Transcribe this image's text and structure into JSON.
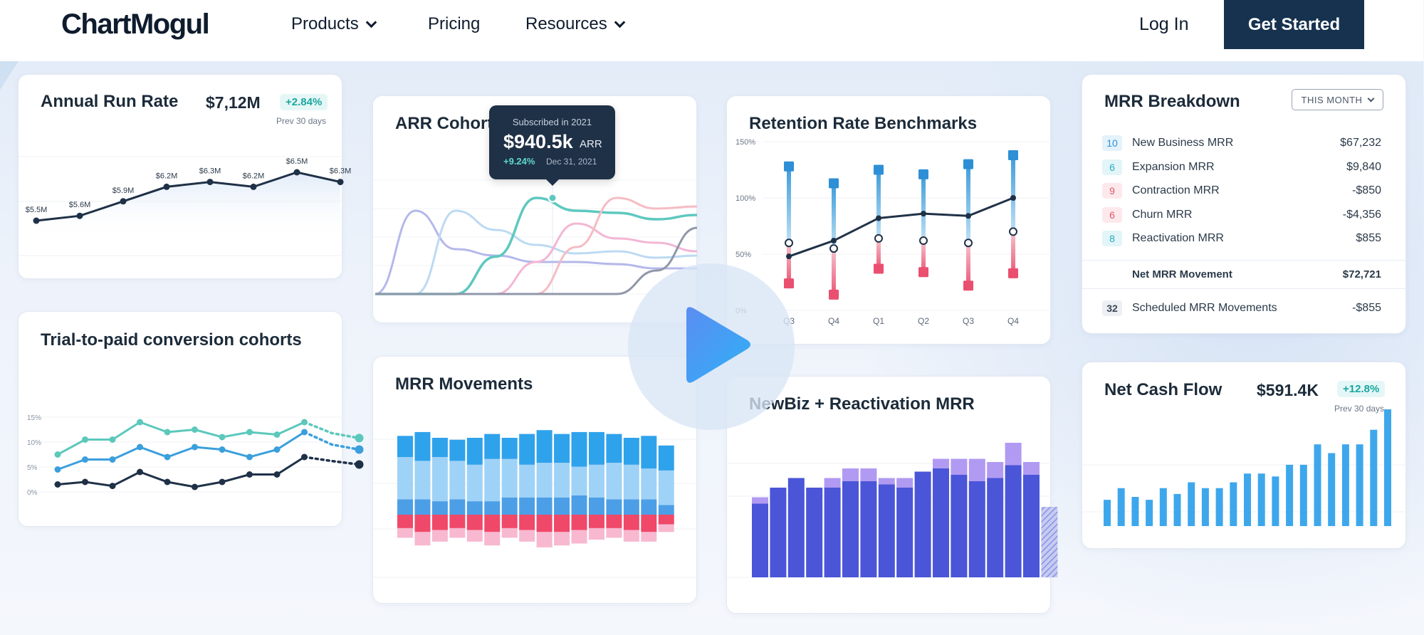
{
  "nav": {
    "logo": "ChartMogul",
    "products": "Products",
    "pricing": "Pricing",
    "resources": "Resources",
    "login": "Log In",
    "cta": "Get Started"
  },
  "annual_run_rate": {
    "title": "Annual Run Rate",
    "value": "$7,12M",
    "badge": "+2.84%",
    "period": "Prev 30 days",
    "chart_data": {
      "type": "line",
      "values": [
        5.5,
        5.6,
        5.9,
        6.2,
        6.3,
        6.2,
        6.5,
        6.3
      ],
      "labels": [
        "$5.5M",
        "$5.6M",
        "$5.9M",
        "$6.2M",
        "$6.3M",
        "$6.2M",
        "$6.5M",
        "$6.3M"
      ],
      "color": "#1f3147"
    }
  },
  "arr_cohorts": {
    "title": "ARR Cohorts",
    "tooltip": {
      "caption": "Subscribed in 2021",
      "value": "$940.5k",
      "unit": "ARR",
      "change": "+9.24%",
      "date": "Dec 31, 2021"
    },
    "chart_data": {
      "type": "line",
      "series": [
        {
          "color": "#b4b8ea",
          "values": [
            0,
            78,
            42,
            36,
            30,
            30,
            28,
            24,
            24
          ]
        },
        {
          "color": "#bcdaf3",
          "values": [
            0,
            0,
            78,
            60,
            46,
            38,
            40,
            34,
            36
          ]
        },
        {
          "color": "#5ec8c0",
          "values": [
            0,
            0,
            0,
            35,
            90,
            78,
            76,
            70,
            74
          ]
        },
        {
          "color": "#f3b6d4",
          "values": [
            0,
            0,
            0,
            0,
            30,
            66,
            52,
            48,
            40
          ]
        },
        {
          "color": "#f5bcc4",
          "values": [
            0,
            0,
            0,
            0,
            0,
            44,
            90,
            80,
            82
          ]
        },
        {
          "color": "#9097a8",
          "values": [
            0,
            0,
            0,
            0,
            0,
            0,
            0,
            22,
            62
          ]
        }
      ]
    }
  },
  "retention": {
    "title": "Retention Rate Benchmarks",
    "chart_data": {
      "type": "line",
      "categories": [
        "Q3",
        "Q4",
        "Q1",
        "Q2",
        "Q3",
        "Q4"
      ],
      "yticks": [
        "150%",
        "100%",
        "50%",
        "0%"
      ],
      "ylim": [
        0,
        150
      ],
      "high": [
        128,
        113,
        125,
        121,
        130,
        138
      ],
      "low": [
        24,
        14,
        37,
        34,
        22,
        33
      ],
      "median": [
        60,
        55,
        64,
        62,
        60,
        70
      ],
      "trend": [
        48,
        62,
        82,
        86,
        84,
        100
      ]
    }
  },
  "mrr_breakdown": {
    "title": "MRR Breakdown",
    "filter": "THIS MONTH",
    "rows": [
      {
        "count": "10",
        "label": "New Business MRR",
        "value": "$67,232",
        "bg": "#e3f2fb",
        "fg": "#2e94d4"
      },
      {
        "count": "6",
        "label": "Expansion MRR",
        "value": "$9,840",
        "bg": "#e2f5f8",
        "fg": "#2aa9bd"
      },
      {
        "count": "9",
        "label": "Contraction MRR",
        "value": "-$850",
        "bg": "#fde9ec",
        "fg": "#e0566c"
      },
      {
        "count": "6",
        "label": "Churn MRR",
        "value": "-$4,356",
        "bg": "#fde9ec",
        "fg": "#e0566c"
      },
      {
        "count": "8",
        "label": "Reactivation MRR",
        "value": "$855",
        "bg": "#e2f5f8",
        "fg": "#2aa9bd"
      }
    ],
    "net_label": "Net MRR Movement",
    "net_value": "$72,721",
    "scheduled_count": "32",
    "scheduled_label": "Scheduled MRR Movements",
    "scheduled_value": "-$855"
  },
  "trial_cohorts": {
    "title": "Trial-to-paid conversion cohorts",
    "chart_data": {
      "type": "line",
      "yticks": [
        "15%",
        "10%",
        "5%",
        "0%"
      ],
      "ylim": [
        0,
        15
      ],
      "series": [
        {
          "color": "#5cc8bc",
          "values": [
            7.5,
            10.5,
            10.5,
            14,
            12,
            12.5,
            11,
            12,
            11.5,
            14,
            11.8,
            10.8
          ]
        },
        {
          "color": "#3a9fdc",
          "values": [
            4.5,
            6.5,
            6.5,
            9,
            7,
            9,
            8.5,
            7,
            8.5,
            12,
            9.5,
            8.5
          ]
        },
        {
          "color": "#1f3147",
          "values": [
            1.5,
            2,
            1.2,
            4,
            2,
            1,
            2,
            3.5,
            3.5,
            7,
            6.2,
            5.5
          ]
        }
      ]
    }
  },
  "mrr_movements": {
    "title": "MRR Movements",
    "chart_data": {
      "type": "bar",
      "series": [
        {
          "name_color": "#2fa2ec",
          "values": [
            22,
            30,
            20,
            22,
            28,
            26,
            22,
            32,
            34,
            30,
            36,
            34,
            30,
            28,
            34,
            26
          ]
        },
        {
          "name_color": "#9fd2f7",
          "values": [
            44,
            40,
            46,
            40,
            38,
            44,
            40,
            34,
            36,
            36,
            30,
            34,
            38,
            36,
            32,
            36
          ]
        },
        {
          "name_color": "#4c9fe6",
          "values": [
            16,
            16,
            14,
            16,
            14,
            14,
            18,
            18,
            18,
            18,
            20,
            18,
            16,
            16,
            16,
            10
          ]
        },
        {
          "name_color": "#f04869",
          "values": [
            -14,
            -18,
            -16,
            -14,
            -16,
            -18,
            -14,
            -16,
            -18,
            -18,
            -16,
            -14,
            -14,
            -16,
            -18,
            -10
          ]
        },
        {
          "name_color": "#f7b8d0",
          "values": [
            -10,
            -14,
            -12,
            -10,
            -12,
            -14,
            -10,
            -12,
            -16,
            -14,
            -14,
            -12,
            -10,
            -12,
            -10,
            -8
          ]
        }
      ]
    }
  },
  "newbiz": {
    "title": "NewBiz + Reactivation MRR",
    "chart_data": {
      "type": "bar",
      "newbiz": [
        46,
        56,
        62,
        56,
        56,
        60,
        60,
        58,
        56,
        66,
        68,
        64,
        60,
        62,
        70,
        64
      ],
      "reactivation": [
        4,
        0,
        0,
        0,
        6,
        8,
        8,
        4,
        6,
        0,
        6,
        10,
        14,
        10,
        14,
        8
      ],
      "forecast": 44,
      "colors": {
        "newbiz": "#4a55d8",
        "reactivation": "#b19af2",
        "forecast": "#a9aee8"
      }
    }
  },
  "net_cash_flow": {
    "title": "Net Cash Flow",
    "value": "$591.4K",
    "badge": "+12.8%",
    "period": "Prev 30 days",
    "chart_data": {
      "type": "bar",
      "values": [
        18,
        26,
        20,
        18,
        26,
        22,
        30,
        26,
        26,
        30,
        36,
        36,
        34,
        42,
        42,
        56,
        50,
        56,
        56,
        66,
        80
      ],
      "color": "#3ea7ec"
    }
  }
}
